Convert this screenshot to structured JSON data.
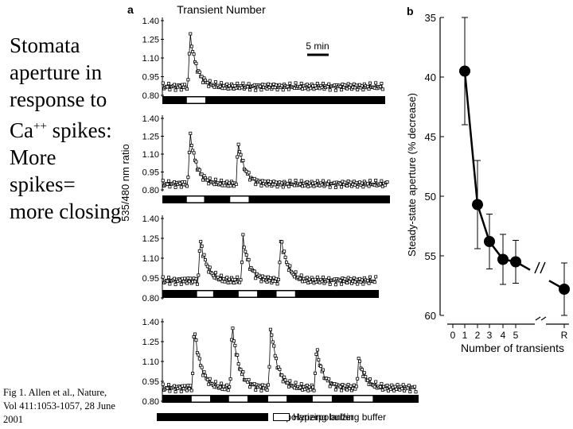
{
  "title_lines": [
    "Stomata",
    "aperture in",
    "response to",
    "spikes:",
    "More",
    "spikes=",
    "more closing"
  ],
  "title_ca": "Ca",
  "title_ca_sup": "++",
  "caption": "Fig 1.  Allen et al., Nature, Vol 411:1053-1057,  28 June 2001",
  "panel_a": {
    "label": "a",
    "header": "Transient Number",
    "scalebar_label": "5 min",
    "ylabel": "535/480 nm ratio",
    "ytick_labels": [
      "0.80",
      "0.95",
      "1.10",
      "1.25",
      "1.40"
    ],
    "legend": {
      "depolarizing": "Depolarizing buffer",
      "hyperpolarizing": "Hyperpolarizing buffer"
    }
  },
  "chart_data": [
    {
      "type": "line",
      "panel": "a",
      "title": "Transient Number",
      "ylabel": "535/480 nm ratio",
      "ylim": [
        0.8,
        1.4
      ],
      "yticks": [
        0.8,
        0.95,
        1.1,
        1.25,
        1.4
      ],
      "x_unit": "min",
      "xlim": [
        0,
        37
      ],
      "traces": [
        {
          "transients": 1,
          "baseline": 0.87,
          "peaks": [
            {
              "t": 4.6,
              "amp": 1.3
            }
          ],
          "hyperpolarizing_periods": [
            [
              4.0,
              7.2
            ]
          ]
        },
        {
          "transients": 2,
          "baseline": 0.85,
          "peaks": [
            {
              "t": 4.6,
              "amp": 1.28
            },
            {
              "t": 12.6,
              "amp": 1.2
            }
          ],
          "hyperpolarizing_periods": [
            [
              4.0,
              7.0
            ],
            [
              11.2,
              14.4
            ]
          ]
        },
        {
          "transients": 3,
          "baseline": 0.93,
          "peaks": [
            {
              "t": 6.3,
              "amp": 1.25
            },
            {
              "t": 13.4,
              "amp": 1.25
            },
            {
              "t": 19.7,
              "amp": 1.26
            }
          ],
          "hyperpolarizing_periods": [
            [
              5.7,
              8.5
            ],
            [
              12.6,
              15.8
            ],
            [
              18.9,
              22.1
            ]
          ]
        },
        {
          "transients": 5,
          "baseline": 0.9,
          "peaks": [
            {
              "t": 5.3,
              "amp": 1.36
            },
            {
              "t": 11.6,
              "amp": 1.38
            },
            {
              "t": 18.0,
              "amp": 1.38
            },
            {
              "t": 25.6,
              "amp": 1.2
            },
            {
              "t": 32.6,
              "amp": 1.12
            }
          ],
          "hyperpolarizing_periods": [
            [
              4.8,
              8.0
            ],
            [
              11.0,
              14.2
            ],
            [
              17.5,
              20.7
            ],
            [
              24.9,
              28.2
            ],
            [
              31.7,
              35.0
            ]
          ]
        }
      ]
    },
    {
      "type": "line",
      "panel": "b",
      "panel_label": "b",
      "xlabel": "Number of transients",
      "ylabel": "Steady-state aperture (% decrease)",
      "ylim": [
        35,
        60
      ],
      "y_inverted": true,
      "yticks": [
        35,
        40,
        45,
        50,
        55,
        60
      ],
      "ytick_labels": [
        "35",
        "40",
        "45",
        "50",
        "55",
        "60"
      ],
      "xtick_labels": [
        "0",
        "1",
        "2",
        "3",
        "4",
        "5",
        "R"
      ],
      "axis_break": true,
      "points": [
        {
          "x": "1",
          "y": 39.5,
          "err": 4.5
        },
        {
          "x": "2",
          "y": 50.7,
          "err": 3.7
        },
        {
          "x": "3",
          "y": 53.8,
          "err": 2.3
        },
        {
          "x": "4",
          "y": 55.3,
          "err": 2.1
        },
        {
          "x": "5",
          "y": 55.5,
          "err": 1.8
        },
        {
          "x": "R",
          "y": 57.8,
          "err": 2.2
        }
      ]
    }
  ]
}
